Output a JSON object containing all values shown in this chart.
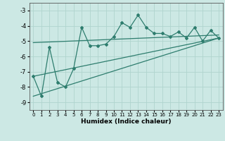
{
  "xlabel": "Humidex (Indice chaleur)",
  "bg_color": "#cce8e4",
  "line_color": "#2e7d6e",
  "grid_color": "#b0d4ce",
  "xlim": [
    -0.5,
    23.5
  ],
  "ylim": [
    -9.5,
    -2.5
  ],
  "yticks": [
    -9,
    -8,
    -7,
    -6,
    -5,
    -4,
    -3
  ],
  "xticks": [
    0,
    1,
    2,
    3,
    4,
    5,
    6,
    7,
    8,
    9,
    10,
    11,
    12,
    13,
    14,
    15,
    16,
    17,
    18,
    19,
    20,
    21,
    22,
    23
  ],
  "xtick_labels": [
    "0",
    "1",
    "2",
    "3",
    "4",
    "5",
    "6",
    "7",
    "8",
    "9",
    "10",
    "11",
    "12",
    "13",
    "14",
    "15",
    "16",
    "17",
    "18",
    "19",
    "20",
    "21",
    "22",
    "23"
  ],
  "series1_x": [
    0,
    1,
    2,
    3,
    4,
    5,
    6,
    7,
    8,
    9,
    10,
    11,
    12,
    13,
    14,
    15,
    16,
    17,
    18,
    19,
    20,
    21,
    22,
    23
  ],
  "series1_y": [
    -7.3,
    -8.6,
    -5.4,
    -7.7,
    -8.0,
    -6.8,
    -4.1,
    -5.3,
    -5.3,
    -5.2,
    -4.7,
    -3.8,
    -4.1,
    -3.3,
    -4.1,
    -4.5,
    -4.5,
    -4.7,
    -4.4,
    -4.8,
    -4.1,
    -5.0,
    -4.3,
    -4.8
  ],
  "trend1_x": [
    0,
    23
  ],
  "trend1_y": [
    -7.3,
    -4.8
  ],
  "trend2_x": [
    0,
    23
  ],
  "trend2_y": [
    -5.1,
    -4.6
  ],
  "trend3_x": [
    0,
    23
  ],
  "trend3_y": [
    -8.6,
    -4.8
  ]
}
